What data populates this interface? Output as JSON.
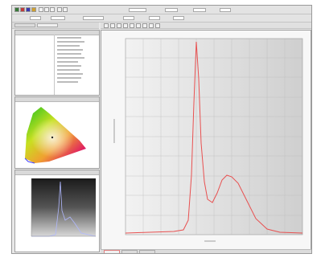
{
  "colors": {
    "spectrum_line": "#e85050",
    "window_bg": "#e9e9e9",
    "plot_bg": "#dddddd"
  },
  "icons": [
    "new-icon",
    "open-icon",
    "save-icon",
    "print-icon",
    "measure-icon",
    "stop-icon",
    "settings-icon",
    "zoom-icon",
    "help-icon"
  ]
}
